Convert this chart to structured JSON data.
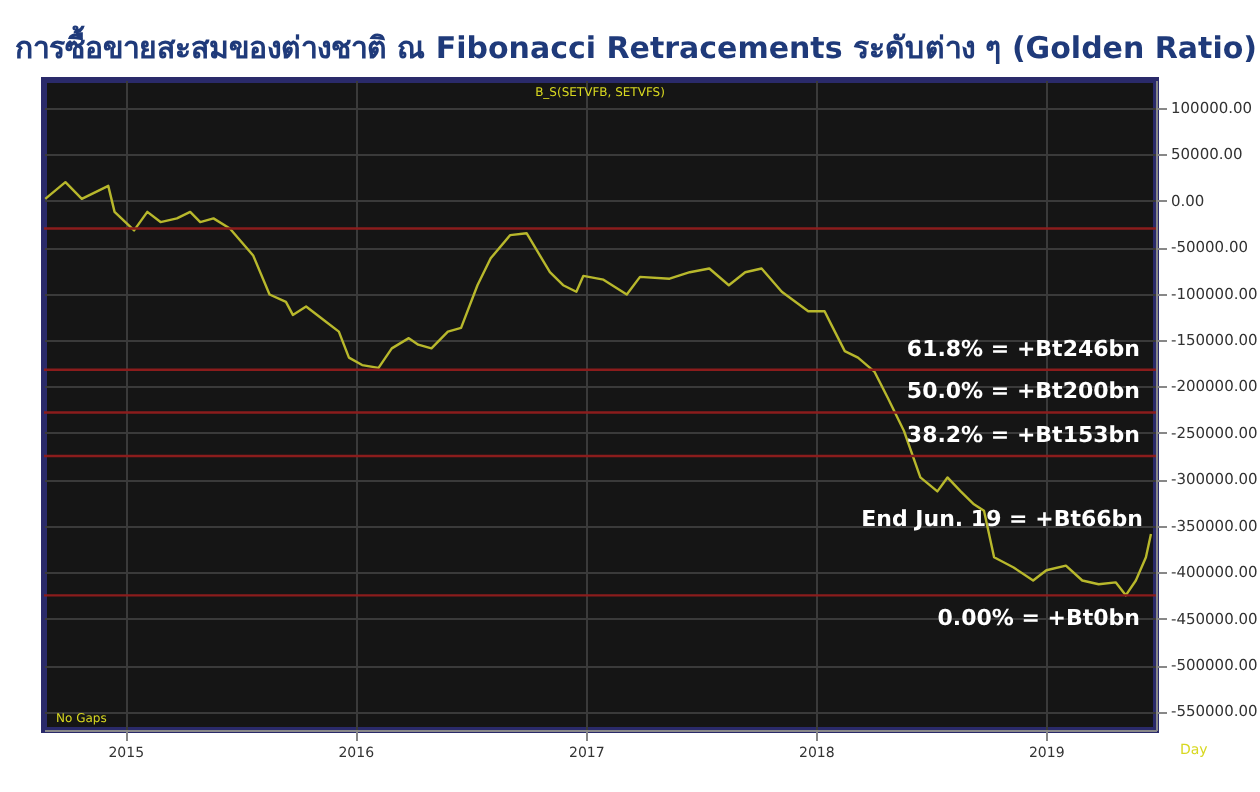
{
  "chart_data": {
    "type": "line",
    "title": "การซื้อขายสะสมของต่างชาติ ณ Fibonacci Retracements ระดับต่าง ๆ (Golden Ratio)",
    "subtitle": "B_S(SETVFB, SETVFS)",
    "xlabel": "Day",
    "x": [
      "2014-08-27",
      "2014-09-28",
      "2014-10-24",
      "2014-12-05",
      "2014-12-15",
      "2015-01-15",
      "2015-02-05",
      "2015-02-26",
      "2015-03-24",
      "2015-04-14",
      "2015-04-30",
      "2015-05-21",
      "2015-06-16",
      "2015-07-23",
      "2015-08-18",
      "2015-09-13",
      "2015-09-24",
      "2015-10-15",
      "2015-11-15",
      "2015-12-06",
      "2015-12-22",
      "2016-01-12",
      "2016-02-07",
      "2016-02-28",
      "2016-03-26",
      "2016-04-10",
      "2016-05-01",
      "2016-05-27",
      "2016-06-17",
      "2016-07-13",
      "2016-08-03",
      "2016-09-03",
      "2016-09-29",
      "2016-11-05",
      "2016-11-26",
      "2016-12-17",
      "2016-12-28",
      "2017-01-29",
      "2017-03-07",
      "2017-03-28",
      "2017-05-14",
      "2017-06-15",
      "2017-07-16",
      "2017-08-16",
      "2017-09-11",
      "2017-10-07",
      "2017-11-08",
      "2017-12-20",
      "2018-01-15",
      "2018-01-26",
      "2018-02-16",
      "2018-03-09",
      "2018-04-04",
      "2018-04-25",
      "2018-05-21",
      "2018-06-16",
      "2018-07-13",
      "2018-07-29",
      "2018-08-19",
      "2018-09-09",
      "2018-09-25",
      "2018-10-11",
      "2018-11-11",
      "2018-12-12",
      "2019-01-02",
      "2019-02-02",
      "2019-02-28",
      "2019-03-26",
      "2019-04-22",
      "2019-05-08",
      "2019-05-24",
      "2019-06-09",
      "2019-06-17"
    ],
    "series": [
      {
        "color": "#b8b82c",
        "values": [
          2000,
          20000,
          2000,
          16000,
          -12000,
          -32000,
          -12000,
          -23000,
          -19000,
          -12000,
          -23000,
          -19000,
          -30000,
          -59000,
          -101000,
          -109000,
          -123000,
          -114000,
          -130000,
          -141000,
          -169000,
          -177000,
          -180000,
          -159000,
          -148000,
          -155000,
          -159000,
          -141000,
          -137000,
          -91000,
          -62000,
          -37000,
          -35000,
          -77000,
          -91000,
          -98000,
          -81000,
          -85000,
          -101000,
          -82000,
          -84000,
          -77000,
          -73000,
          -91000,
          -77000,
          -73000,
          -98000,
          -119000,
          -119000,
          -134000,
          -162000,
          -169000,
          -184000,
          -212000,
          -248000,
          -298000,
          -313000,
          -298000,
          -313000,
          -327000,
          -334000,
          -384000,
          -395000,
          -409000,
          -398000,
          -393000,
          -409000,
          -413000,
          -411000,
          -425000,
          -409000,
          -384000,
          -359000
        ]
      }
    ],
    "xlim": [
      "2014-08-25",
      "2019-06-25"
    ],
    "xticks": [
      {
        "value": "2015-01-01",
        "label": "2015"
      },
      {
        "value": "2016-01-01",
        "label": "2016"
      },
      {
        "value": "2017-01-01",
        "label": "2017"
      },
      {
        "value": "2018-01-01",
        "label": "2018"
      },
      {
        "value": "2019-01-01",
        "label": "2019"
      }
    ],
    "ylim": [
      -570000,
      130000
    ],
    "yticks": [
      {
        "value": 100000,
        "label": "100000.00"
      },
      {
        "value": 50000,
        "label": "50000.00"
      },
      {
        "value": 0,
        "label": "0.00"
      },
      {
        "value": -50000,
        "label": "-50000.00"
      },
      {
        "value": -100000,
        "label": "-100000.00"
      },
      {
        "value": -150000,
        "label": "-150000.00"
      },
      {
        "value": -200000,
        "label": "-200000.00"
      },
      {
        "value": -250000,
        "label": "-250000.00"
      },
      {
        "value": -300000,
        "label": "-300000.00"
      },
      {
        "value": -350000,
        "label": "-350000.00"
      },
      {
        "value": -400000,
        "label": "-400000.00"
      },
      {
        "value": -450000,
        "label": "-450000.00"
      },
      {
        "value": -500000,
        "label": "-500000.00"
      },
      {
        "value": -550000,
        "label": "-550000.00"
      }
    ],
    "ref_lines": [
      {
        "axis": "y",
        "value": -30000,
        "color": "#8b1c1c"
      },
      {
        "axis": "y",
        "value": -182000,
        "label": "61.8% = +Bt246bn",
        "color": "#8b1c1c"
      },
      {
        "axis": "y",
        "value": -228000,
        "label": "50.0% = +Bt200bn",
        "color": "#8b1c1c"
      },
      {
        "axis": "y",
        "value": -275000,
        "label": "38.2% = +Bt153bn",
        "color": "#8b1c1c"
      },
      {
        "axis": "y",
        "value": -425000,
        "label": "0.00% = +Bt0bn",
        "color": "#8b1c1c"
      }
    ],
    "annotations": [
      "No Gaps",
      {
        "text": "End Jun. 19 = +Bt66bn",
        "x": "2019-06-17",
        "y": -359000
      }
    ],
    "grid": true,
    "marker": "none",
    "line_style": "solid"
  }
}
